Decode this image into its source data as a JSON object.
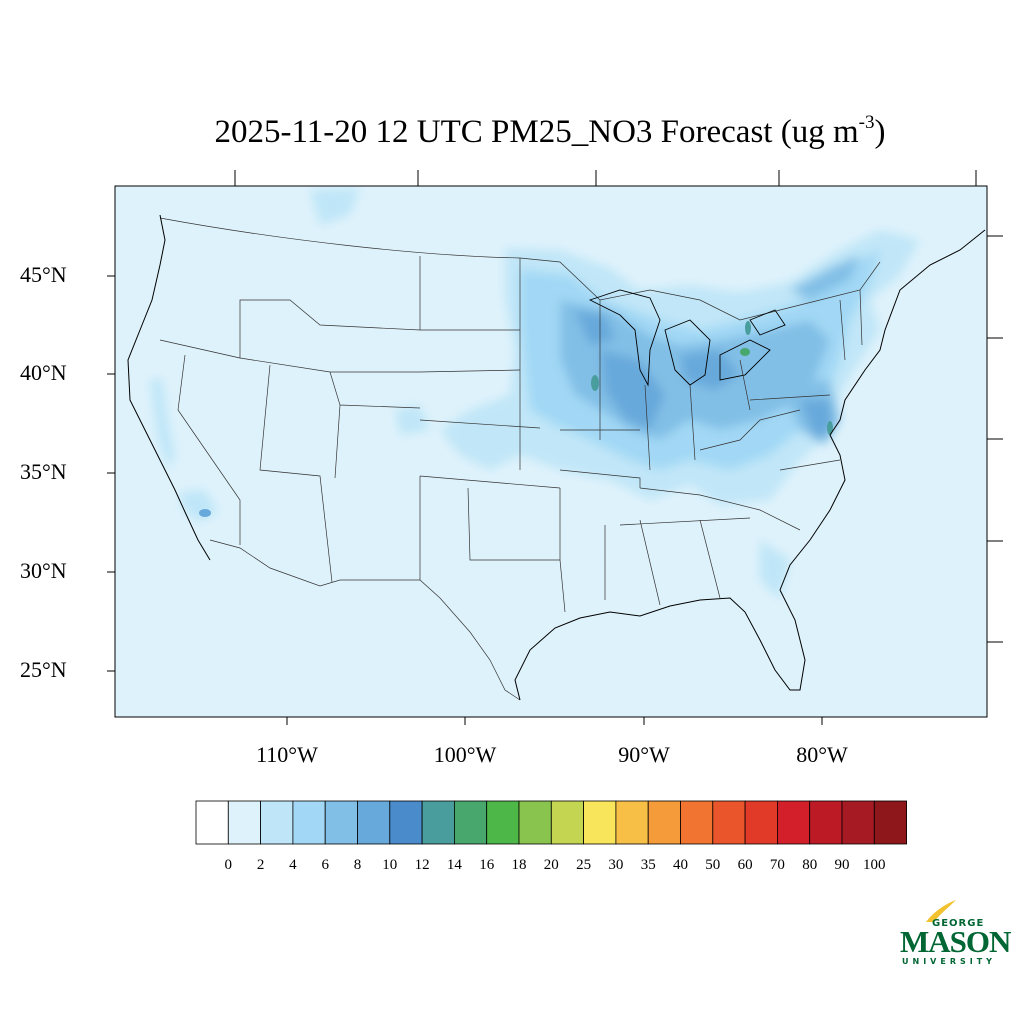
{
  "title": {
    "main": "2025-11-20 12 UTC PM25_NO3 Forecast (ug m",
    "sup": "-3",
    "close": ")"
  },
  "map": {
    "lat_labels": [
      "45°N",
      "40°N",
      "35°N",
      "30°N",
      "25°N"
    ],
    "lon_labels": [
      "110°W",
      "100°W",
      "90°W",
      "80°W"
    ],
    "background_color": "#def2fb"
  },
  "colorbar": {
    "labels": [
      "0",
      "2",
      "4",
      "6",
      "8",
      "10",
      "12",
      "14",
      "16",
      "18",
      "20",
      "25",
      "30",
      "35",
      "40",
      "50",
      "60",
      "70",
      "80",
      "90",
      "100"
    ],
    "colors": [
      "#ffffff",
      "#def2fb",
      "#bfe6f8",
      "#a2d8f5",
      "#82bfe6",
      "#68a9db",
      "#4a8bcb",
      "#4a9d9d",
      "#48a76d",
      "#4db848",
      "#89c54e",
      "#c4d651",
      "#f9e55b",
      "#f8bf46",
      "#f59b3a",
      "#f17430",
      "#ea552b",
      "#e23a28",
      "#d31f2a",
      "#bc1b26",
      "#a61a23",
      "#8e171c"
    ]
  },
  "logo": {
    "line1": "GEORGE",
    "line2": "MASON",
    "line3": "UNIVERSITY"
  }
}
